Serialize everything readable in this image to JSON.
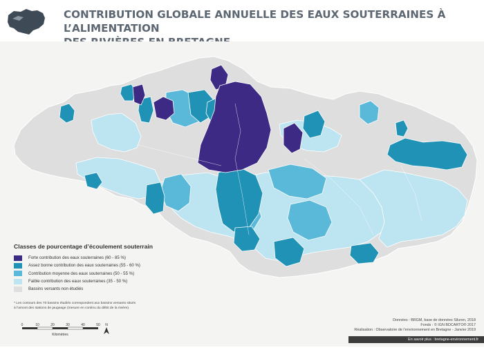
{
  "title": {
    "line1": "CONTRIBUTION GLOBALE ANNUELLE DES EAUX SOUTERRAINES À L’ALIMENTATION",
    "line2": "DES RIVIÈRES EN BRETAGNE"
  },
  "colors": {
    "forte": "#3c2a85",
    "assez_bonne": "#1f92b6",
    "moyenne": "#5ab8d9",
    "faible": "#bde4f1",
    "non_etudies": "#dedede",
    "sea": "#ffffff",
    "land_outside": "#f4f4f2",
    "title": "#5d6772"
  },
  "legend": {
    "title": "Classes de pourcentage d’écoulement souterrain",
    "items": [
      {
        "label": "Forte contribution des eaux souterraines (60 - 85 %)",
        "color": "#3c2a85"
      },
      {
        "label": "Assez bonne contribution des eaux souterraines (55 - 60 %)",
        "color": "#1f92b6"
      },
      {
        "label": "Contribution moyenne des eaux souterraines (50 - 55 %)",
        "color": "#5ab8d9"
      },
      {
        "label": "Faible contribution des eaux souterraines (35 - 50 %)",
        "color": "#bde4f1"
      },
      {
        "label": "Bassins versants non étudiés",
        "color": "#dedede"
      }
    ]
  },
  "footnote": {
    "line1": "* Les contours des 70 bassins étudiés correspondent aux bassins versants situés",
    "line2": "à l’amont des stations de jaugeage (mesure en continu du débit de la rivière)."
  },
  "scale": {
    "ticks": [
      "0",
      "10",
      "20",
      "30",
      "40",
      "50"
    ],
    "unit": "Kilomètres",
    "north": "N"
  },
  "credits": {
    "line1": "Données : BRGM, base de données Siluren, 2018",
    "line2": "Fonds : © IGN BDCARTO® 2017",
    "line3": "Réalisation : Observatoire de l’environnement en Bretagne - Janvier 2019"
  },
  "link": "En savoir plus : bretagne-environnement.fr"
}
